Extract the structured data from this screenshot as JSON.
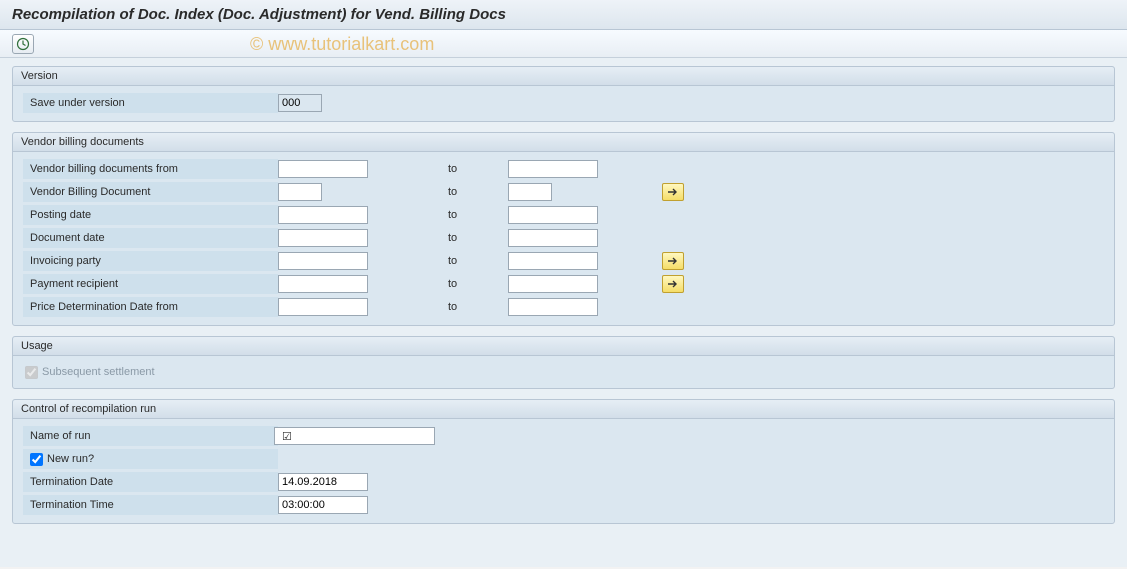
{
  "title": "Recompilation of Doc. Index (Doc. Adjustment) for Vend. Billing Docs",
  "watermark": "© www.tutorialkart.com",
  "colors": {
    "page_bg": "#e9f0f5",
    "group_bg": "#dbe7f0",
    "label_bg": "#cee0ec",
    "border": "#b8c6d4",
    "multi_btn_bg": "#f5dd68"
  },
  "version": {
    "group_title": "Version",
    "save_under_label": "Save under version",
    "save_under_value": "000"
  },
  "vendor_docs": {
    "group_title": "Vendor billing documents",
    "to_label": "to",
    "rows": [
      {
        "label": "Vendor billing documents from",
        "from": "",
        "to": "",
        "multi": false,
        "from_w": "w90",
        "to_w": "w90"
      },
      {
        "label": "Vendor Billing Document",
        "from": "",
        "to": "",
        "multi": true,
        "from_w": "short1",
        "to_w": "short1"
      },
      {
        "label": "Posting date",
        "from": "",
        "to": "",
        "multi": false,
        "from_w": "w90",
        "to_w": "w90"
      },
      {
        "label": "Document date",
        "from": "",
        "to": "",
        "multi": false,
        "from_w": "w90",
        "to_w": "w90"
      },
      {
        "label": "Invoicing party",
        "from": "",
        "to": "",
        "multi": true,
        "from_w": "w90",
        "to_w": "w90"
      },
      {
        "label": "Payment recipient",
        "from": "",
        "to": "",
        "multi": true,
        "from_w": "w90",
        "to_w": "w90"
      },
      {
        "label": "Price Determination Date from",
        "from": "",
        "to": "",
        "multi": false,
        "from_w": "w90",
        "to_w": "w90"
      }
    ]
  },
  "usage": {
    "group_title": "Usage",
    "subsequent_label": "Subsequent settlement",
    "subsequent_checked": true,
    "subsequent_disabled": true
  },
  "control": {
    "group_title": "Control of recompilation run",
    "name_of_run_label": "Name of run",
    "name_of_run_value": "",
    "name_of_run_required": true,
    "new_run_label": "New run?",
    "new_run_checked": true,
    "term_date_label": "Termination Date",
    "term_date_value": "14.09.2018",
    "term_time_label": "Termination Time",
    "term_time_value": "03:00:00"
  }
}
